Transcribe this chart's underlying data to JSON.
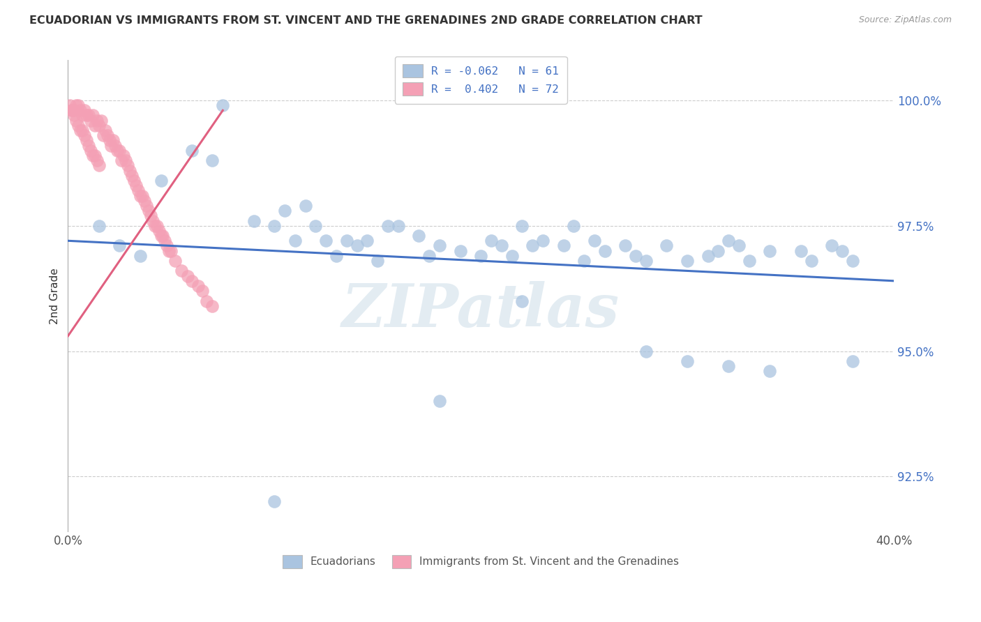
{
  "title": "ECUADORIAN VS IMMIGRANTS FROM ST. VINCENT AND THE GRENADINES 2ND GRADE CORRELATION CHART",
  "source": "Source: ZipAtlas.com",
  "ylabel": "2nd Grade",
  "ytick_labels": [
    "92.5%",
    "95.0%",
    "97.5%",
    "100.0%"
  ],
  "ytick_values": [
    0.925,
    0.95,
    0.975,
    1.0
  ],
  "xmin": 0.0,
  "xmax": 0.4,
  "ymin": 0.914,
  "ymax": 1.008,
  "legend_line1": "R = -0.062   N = 61",
  "legend_line2": "R =  0.402   N = 72",
  "color_blue": "#aac4e0",
  "color_pink": "#f4a0b5",
  "trendline_blue_color": "#4472c4",
  "trendline_pink_color": "#e06080",
  "watermark": "ZIPatlas",
  "legend_labels": [
    "Ecuadorians",
    "Immigrants from St. Vincent and the Grenadines"
  ],
  "blue_trend_x": [
    0.0,
    0.4
  ],
  "blue_trend_y": [
    0.972,
    0.964
  ],
  "pink_trend_x": [
    0.0,
    0.075
  ],
  "pink_trend_y": [
    0.953,
    0.998
  ],
  "blue_x": [
    0.015,
    0.025,
    0.035,
    0.045,
    0.06,
    0.07,
    0.075,
    0.09,
    0.1,
    0.105,
    0.11,
    0.115,
    0.12,
    0.125,
    0.13,
    0.135,
    0.14,
    0.145,
    0.15,
    0.155,
    0.16,
    0.17,
    0.175,
    0.18,
    0.19,
    0.2,
    0.205,
    0.21,
    0.215,
    0.22,
    0.225,
    0.23,
    0.24,
    0.245,
    0.25,
    0.255,
    0.26,
    0.27,
    0.275,
    0.28,
    0.29,
    0.3,
    0.31,
    0.315,
    0.32,
    0.325,
    0.33,
    0.34,
    0.355,
    0.36,
    0.37,
    0.375,
    0.38,
    0.28,
    0.3,
    0.32,
    0.34,
    0.38,
    0.22,
    0.18,
    0.1
  ],
  "blue_y": [
    0.975,
    0.971,
    0.969,
    0.984,
    0.99,
    0.988,
    0.999,
    0.976,
    0.975,
    0.978,
    0.972,
    0.979,
    0.975,
    0.972,
    0.969,
    0.972,
    0.971,
    0.972,
    0.968,
    0.975,
    0.975,
    0.973,
    0.969,
    0.971,
    0.97,
    0.969,
    0.972,
    0.971,
    0.969,
    0.975,
    0.971,
    0.972,
    0.971,
    0.975,
    0.968,
    0.972,
    0.97,
    0.971,
    0.969,
    0.968,
    0.971,
    0.968,
    0.969,
    0.97,
    0.972,
    0.971,
    0.968,
    0.97,
    0.97,
    0.968,
    0.971,
    0.97,
    0.968,
    0.95,
    0.948,
    0.947,
    0.946,
    0.948,
    0.96,
    0.94,
    0.92
  ],
  "pink_x": [
    0.002,
    0.003,
    0.004,
    0.005,
    0.006,
    0.007,
    0.008,
    0.009,
    0.01,
    0.011,
    0.012,
    0.013,
    0.014,
    0.015,
    0.016,
    0.017,
    0.018,
    0.019,
    0.02,
    0.021,
    0.022,
    0.023,
    0.024,
    0.025,
    0.026,
    0.027,
    0.028,
    0.029,
    0.03,
    0.031,
    0.032,
    0.033,
    0.034,
    0.035,
    0.036,
    0.037,
    0.038,
    0.039,
    0.04,
    0.041,
    0.042,
    0.043,
    0.044,
    0.045,
    0.046,
    0.047,
    0.048,
    0.049,
    0.05,
    0.052,
    0.055,
    0.058,
    0.06,
    0.063,
    0.065,
    0.067,
    0.07,
    0.001,
    0.002,
    0.003,
    0.004,
    0.005,
    0.006,
    0.007,
    0.008,
    0.009,
    0.01,
    0.011,
    0.012,
    0.013,
    0.014,
    0.015
  ],
  "pink_y": [
    0.998,
    0.998,
    0.999,
    0.999,
    0.998,
    0.997,
    0.998,
    0.997,
    0.997,
    0.996,
    0.997,
    0.995,
    0.996,
    0.995,
    0.996,
    0.993,
    0.994,
    0.993,
    0.992,
    0.991,
    0.992,
    0.991,
    0.99,
    0.99,
    0.988,
    0.989,
    0.988,
    0.987,
    0.986,
    0.985,
    0.984,
    0.983,
    0.982,
    0.981,
    0.981,
    0.98,
    0.979,
    0.978,
    0.977,
    0.976,
    0.975,
    0.975,
    0.974,
    0.973,
    0.973,
    0.972,
    0.971,
    0.97,
    0.97,
    0.968,
    0.966,
    0.965,
    0.964,
    0.963,
    0.962,
    0.96,
    0.959,
    0.999,
    0.998,
    0.997,
    0.996,
    0.995,
    0.994,
    0.994,
    0.993,
    0.992,
    0.991,
    0.99,
    0.989,
    0.989,
    0.988,
    0.987
  ]
}
